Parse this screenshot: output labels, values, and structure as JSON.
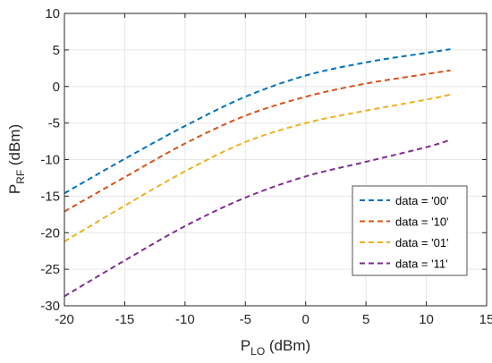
{
  "chart_data": {
    "type": "line",
    "title": "",
    "xlabel": {
      "main": "P",
      "sub": "LO",
      "unit": " (dBm)"
    },
    "ylabel": {
      "main": "P",
      "sub": "RF",
      "unit": " (dBm)"
    },
    "xlim": [
      -20,
      15
    ],
    "ylim": [
      -30,
      10
    ],
    "xticks": [
      -20,
      -15,
      -10,
      -5,
      0,
      5,
      10,
      15
    ],
    "yticks": [
      -30,
      -25,
      -20,
      -15,
      -10,
      -5,
      0,
      5,
      10
    ],
    "grid": true,
    "legend_position": "lower-right",
    "series": [
      {
        "name": "data = '00'",
        "color": "#0072BD",
        "line_style": "dashed",
        "x": [
          -20,
          -15,
          -10,
          -5,
          0,
          5,
          10,
          12
        ],
        "y": [
          -14.6,
          -9.9,
          -5.4,
          -1.4,
          1.5,
          3.3,
          4.6,
          5.1
        ]
      },
      {
        "name": "data = '10'",
        "color": "#D95319",
        "line_style": "dashed",
        "x": [
          -20,
          -15,
          -10,
          -5,
          0,
          5,
          10,
          12
        ],
        "y": [
          -17.1,
          -12.4,
          -7.8,
          -4.0,
          -1.4,
          0.4,
          1.7,
          2.2
        ]
      },
      {
        "name": "data = '01'",
        "color": "#EDB120",
        "line_style": "dashed",
        "x": [
          -20,
          -15,
          -10,
          -5,
          0,
          5,
          10,
          12
        ],
        "y": [
          -21.2,
          -16.3,
          -11.6,
          -7.6,
          -5.0,
          -3.3,
          -1.8,
          -1.1
        ]
      },
      {
        "name": "data = '11'",
        "color": "#7E2F8E",
        "line_style": "dashed",
        "x": [
          -20,
          -15,
          -10,
          -5,
          0,
          5,
          10,
          12
        ],
        "y": [
          -28.7,
          -23.8,
          -19.1,
          -15.2,
          -12.3,
          -10.3,
          -8.3,
          -7.3
        ]
      }
    ]
  }
}
